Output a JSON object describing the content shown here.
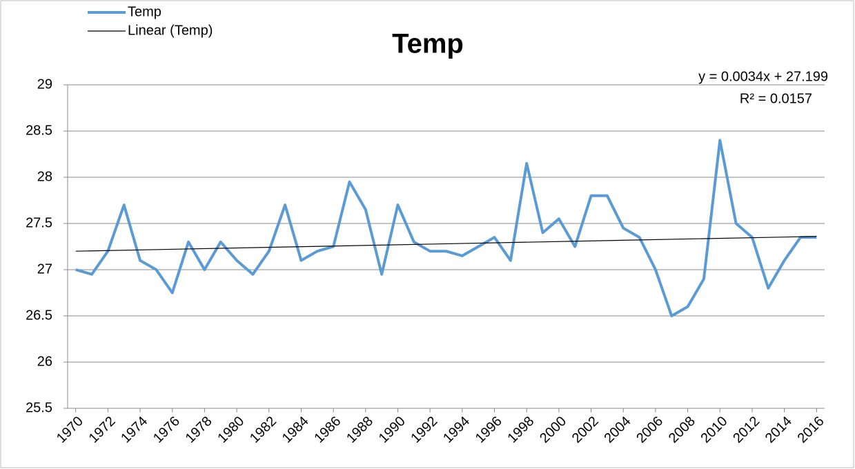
{
  "chart_data": {
    "type": "line",
    "title": "Temp",
    "annotations": [
      "y = 0.0034x + 27.199",
      "R² = 0.0157"
    ],
    "x": [
      1970,
      1971,
      1972,
      1973,
      1974,
      1975,
      1976,
      1977,
      1978,
      1979,
      1980,
      1981,
      1982,
      1983,
      1984,
      1985,
      1986,
      1987,
      1988,
      1989,
      1990,
      1991,
      1992,
      1993,
      1994,
      1995,
      1996,
      1997,
      1998,
      1999,
      2000,
      2001,
      2002,
      2003,
      2004,
      2005,
      2006,
      2007,
      2008,
      2009,
      2010,
      2011,
      2012,
      2013,
      2014,
      2015,
      2016
    ],
    "series": [
      {
        "name": "Temp",
        "color": "#5b9bd5",
        "values": [
          27.0,
          26.95,
          27.2,
          27.7,
          27.1,
          27.0,
          26.75,
          27.3,
          27.0,
          27.3,
          27.1,
          26.95,
          27.2,
          27.7,
          27.1,
          27.2,
          27.25,
          27.95,
          27.65,
          26.95,
          27.7,
          27.3,
          27.2,
          27.2,
          27.15,
          27.25,
          27.35,
          27.1,
          28.15,
          27.4,
          27.55,
          27.25,
          27.8,
          27.8,
          27.45,
          27.35,
          27.0,
          26.5,
          26.6,
          26.9,
          28.4,
          27.5,
          27.35,
          26.8,
          27.1,
          27.35,
          27.35
        ]
      },
      {
        "name": "Linear (Temp)",
        "color": "#000000",
        "x": [
          1970,
          2016
        ],
        "values": [
          27.2,
          27.36
        ]
      }
    ],
    "xlim": [
      1969.5,
      2016.5
    ],
    "xticks": [
      1970,
      1972,
      1974,
      1976,
      1978,
      1980,
      1982,
      1984,
      1986,
      1988,
      1990,
      1992,
      1994,
      1996,
      1998,
      2000,
      2002,
      2004,
      2006,
      2008,
      2010,
      2012,
      2014,
      2016
    ],
    "ylim": [
      25.5,
      29
    ],
    "yticks": [
      25.5,
      26,
      26.5,
      27,
      27.5,
      28,
      28.5,
      29
    ],
    "grid": true
  }
}
